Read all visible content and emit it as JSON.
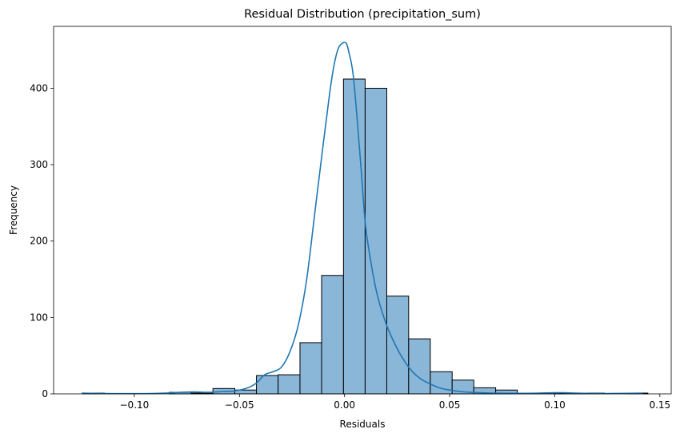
{
  "chart_data": {
    "type": "bar",
    "title": "Residual Distribution (precipitation_sum)",
    "xlabel": "Residuals",
    "ylabel": "Frequency",
    "xlim": [
      -0.1384,
      0.1554
    ],
    "ylim": [
      0,
      481
    ],
    "xticks": [
      -0.1,
      -0.05,
      0.0,
      0.05,
      0.1,
      0.15
    ],
    "xtick_labels": [
      "−0.10",
      "−0.05",
      "0.00",
      "0.05",
      "0.10",
      "0.15"
    ],
    "yticks": [
      0,
      100,
      200,
      300,
      400
    ],
    "ytick_labels": [
      "0",
      "100",
      "200",
      "300",
      "400"
    ],
    "bin_width": 0.01034,
    "bins": [
      {
        "x0": -0.1246,
        "x1": -0.1143,
        "count": 1
      },
      {
        "x0": -0.1143,
        "x1": -0.104,
        "count": 0
      },
      {
        "x0": -0.104,
        "x1": -0.0936,
        "count": 0
      },
      {
        "x0": -0.0936,
        "x1": -0.0833,
        "count": 0
      },
      {
        "x0": -0.0833,
        "x1": -0.0729,
        "count": 2
      },
      {
        "x0": -0.0729,
        "x1": -0.0626,
        "count": 1
      },
      {
        "x0": -0.0626,
        "x1": -0.0522,
        "count": 7
      },
      {
        "x0": -0.0522,
        "x1": -0.0419,
        "count": 5
      },
      {
        "x0": -0.0419,
        "x1": -0.0316,
        "count": 24
      },
      {
        "x0": -0.0316,
        "x1": -0.0212,
        "count": 25
      },
      {
        "x0": -0.0212,
        "x1": -0.0109,
        "count": 67
      },
      {
        "x0": -0.0109,
        "x1": -0.0005,
        "count": 155
      },
      {
        "x0": -0.0005,
        "x1": 0.0098,
        "count": 412
      },
      {
        "x0": 0.0098,
        "x1": 0.0201,
        "count": 400
      },
      {
        "x0": 0.0201,
        "x1": 0.0305,
        "count": 128
      },
      {
        "x0": 0.0305,
        "x1": 0.0408,
        "count": 72
      },
      {
        "x0": 0.0408,
        "x1": 0.0512,
        "count": 29
      },
      {
        "x0": 0.0512,
        "x1": 0.0615,
        "count": 18
      },
      {
        "x0": 0.0615,
        "x1": 0.0719,
        "count": 8
      },
      {
        "x0": 0.0719,
        "x1": 0.0822,
        "count": 5
      },
      {
        "x0": 0.0822,
        "x1": 0.0926,
        "count": 1
      },
      {
        "x0": 0.0926,
        "x1": 0.1029,
        "count": 1
      },
      {
        "x0": 0.1029,
        "x1": 0.1133,
        "count": 1
      },
      {
        "x0": 0.1133,
        "x1": 0.1236,
        "count": 1
      },
      {
        "x0": 0.1236,
        "x1": 0.134,
        "count": 0
      },
      {
        "x0": 0.134,
        "x1": 0.1443,
        "count": 1
      }
    ],
    "kde": {
      "x": [
        -0.125,
        -0.115,
        -0.105,
        -0.095,
        -0.085,
        -0.078,
        -0.072,
        -0.065,
        -0.058,
        -0.052,
        -0.046,
        -0.042,
        -0.038,
        -0.034,
        -0.03,
        -0.026,
        -0.022,
        -0.018,
        -0.014,
        -0.01,
        -0.007,
        -0.005,
        -0.003,
        -0.001,
        0.0,
        0.001,
        0.002,
        0.004,
        0.006,
        0.008,
        0.01,
        0.013,
        0.016,
        0.02,
        0.024,
        0.028,
        0.032,
        0.036,
        0.04,
        0.045,
        0.05,
        0.055,
        0.06,
        0.065,
        0.07,
        0.08,
        0.09,
        0.1,
        0.105,
        0.11,
        0.12,
        0.13,
        0.142
      ],
      "y": [
        1,
        0.5,
        0.3,
        0.4,
        1,
        2,
        2.5,
        2,
        3,
        4,
        8,
        14,
        25,
        29,
        35,
        55,
        90,
        150,
        240,
        330,
        395,
        430,
        452,
        459,
        460,
        458,
        448,
        420,
        360,
        290,
        220,
        165,
        125,
        90,
        65,
        45,
        30,
        20,
        14,
        8,
        5,
        3,
        2,
        1.5,
        1,
        0.7,
        0.8,
        1.5,
        1.5,
        1,
        0.5,
        0.6,
        1
      ]
    },
    "colors": {
      "bar_fill": "#8ab6d8",
      "bar_edge": "#000000",
      "kde_line": "#1f77b4"
    },
    "grid": false,
    "legend": "none"
  }
}
